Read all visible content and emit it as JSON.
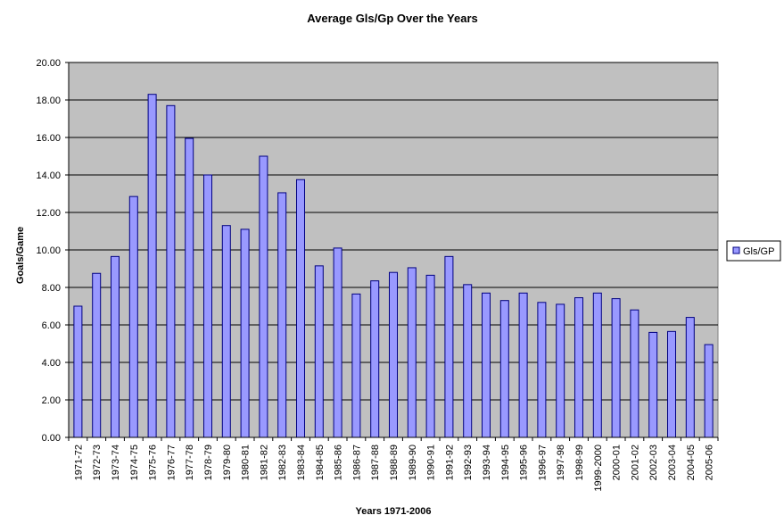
{
  "chart_data": {
    "type": "bar",
    "title": "Average Gls/Gp Over the Years",
    "xlabel": "Years 1971-2006",
    "ylabel": "Goals/Game",
    "ylim": [
      0,
      20
    ],
    "yticks": [
      "0.00",
      "2.00",
      "4.00",
      "6.00",
      "8.00",
      "10.00",
      "12.00",
      "14.00",
      "16.00",
      "18.00",
      "20.00"
    ],
    "grid": true,
    "legend_position": "right",
    "categories": [
      "1971-72",
      "1972-73",
      "1973-74",
      "1974-75",
      "1975-76",
      "1976-77",
      "1977-78",
      "1978-79",
      "1979-80",
      "1980-81",
      "1981-82",
      "1982-83",
      "1983-84",
      "1984-85",
      "1985-86",
      "1986-87",
      "1987-88",
      "1988-89",
      "1989-90",
      "1990-91",
      "1991-92",
      "1992-93",
      "1993-94",
      "1994-95",
      "1995-96",
      "1996-97",
      "1997-98",
      "1998-99",
      "1999-2000",
      "2000-01",
      "2001-02",
      "2002-03",
      "2003-04",
      "2004-05",
      "2005-06"
    ],
    "series": [
      {
        "name": "Gls/GP",
        "color": "#9999ff",
        "values": [
          7.0,
          8.75,
          9.65,
          12.85,
          18.3,
          17.7,
          15.95,
          14.0,
          11.3,
          11.1,
          15.0,
          13.05,
          13.75,
          9.15,
          10.1,
          7.65,
          8.35,
          8.8,
          9.05,
          8.65,
          9.65,
          8.15,
          7.7,
          7.3,
          7.7,
          7.2,
          7.1,
          7.45,
          7.7,
          7.4,
          6.8,
          5.6,
          5.65,
          6.4,
          4.95
        ]
      }
    ]
  },
  "colors": {
    "plot_background": "#c0c0c0",
    "bar_fill": "#9999ff",
    "bar_stroke": "#000080"
  }
}
